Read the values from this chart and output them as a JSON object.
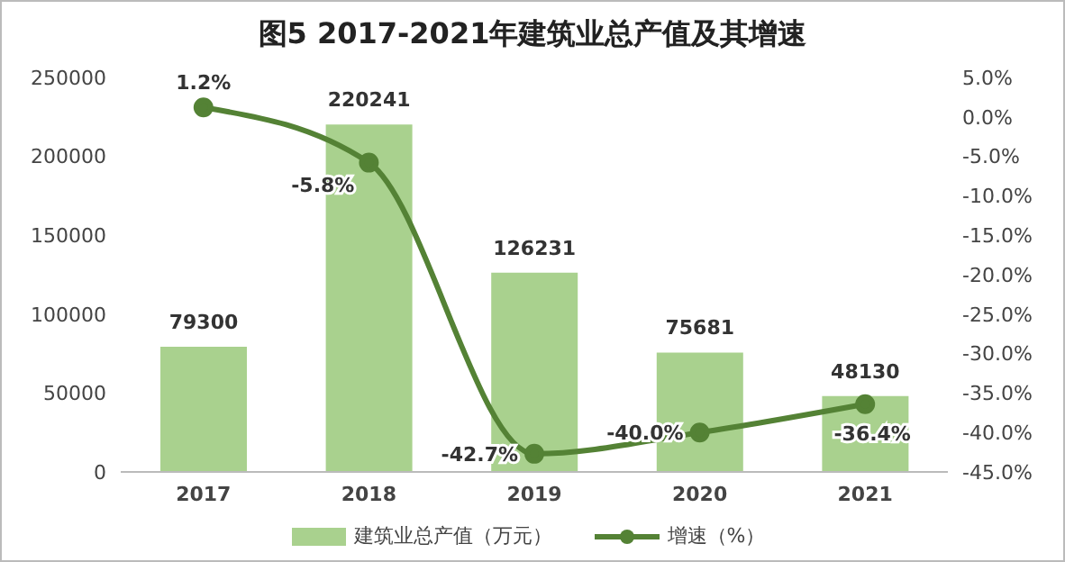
{
  "chart_data": {
    "type": "bar",
    "title": "图5  2017-2021年建筑业总产值及其增速",
    "categories": [
      "2017",
      "2018",
      "2019",
      "2020",
      "2021"
    ],
    "series": [
      {
        "name": "建筑业总产值（万元）",
        "color": "#a9d18e",
        "values": [
          79300,
          220241,
          126231,
          75681,
          48130
        ],
        "value_labels": [
          "79300",
          "220241",
          "126231",
          "75681",
          "48130"
        ]
      },
      {
        "name": "增速（%）",
        "type": "line",
        "axis": "y2",
        "color": "#548235",
        "values": [
          1.2,
          -5.8,
          -42.7,
          -40.0,
          -36.4
        ],
        "value_labels": [
          "1.2%",
          "-5.8%",
          "-42.7%",
          "-40.0%",
          "-36.4%"
        ]
      }
    ],
    "ylim": [
      0,
      250000
    ],
    "yticks": [
      0,
      50000,
      100000,
      150000,
      200000,
      250000
    ],
    "y2lim": [
      -45,
      5
    ],
    "y2ticks": [
      {
        "value": 5,
        "label": "5.0%"
      },
      {
        "value": 0,
        "label": "0.0%"
      },
      {
        "value": -5,
        "label": "-5.0%"
      },
      {
        "value": -10,
        "label": "-10.0%"
      },
      {
        "value": -15,
        "label": "-15.0%"
      },
      {
        "value": -20,
        "label": "-20.0%"
      },
      {
        "value": -25,
        "label": "-25.0%"
      },
      {
        "value": -30,
        "label": "-30.0%"
      },
      {
        "value": -35,
        "label": "-35.0%"
      },
      {
        "value": -40,
        "label": "-40.0%"
      },
      {
        "value": -45,
        "label": "-45.0%"
      }
    ],
    "grid": false,
    "legend": "bottom",
    "marker": "circle",
    "line_style": "solid"
  }
}
